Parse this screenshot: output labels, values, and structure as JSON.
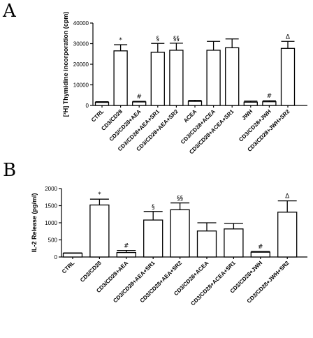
{
  "chart_data": [
    {
      "type": "bar",
      "panel": "A",
      "ylabel": "[³H] Thymidine incorporation (cpm)",
      "ylim": [
        0,
        40000
      ],
      "yticks": [
        0,
        10000,
        20000,
        30000,
        40000
      ],
      "categories": [
        "CTRL",
        "CD3/CD28",
        "CD3/CD28+AEA",
        "CD3/CD28+AEA+SR1",
        "CD3/CD28+AEA+SR2",
        "ACEA",
        "CD3/CD28+ACEA",
        "CD3/CD28+ACEA+SR1",
        "JWH",
        "CD3/CD28+JWH",
        "CD3/CD28+JWH+SR2"
      ],
      "values": [
        1500,
        26500,
        1700,
        25800,
        26800,
        2000,
        26800,
        28000,
        1600,
        1800,
        27700
      ],
      "errors": [
        300,
        3000,
        300,
        4300,
        3400,
        500,
        4300,
        4300,
        500,
        500,
        3400
      ],
      "annotations": [
        "",
        "*",
        "#",
        "§",
        "§§",
        "",
        "",
        "",
        "",
        "#",
        "Δ"
      ]
    },
    {
      "type": "bar",
      "panel": "B",
      "ylabel": "IL-2 Release (pg/ml)",
      "ylim": [
        0,
        2000
      ],
      "yticks": [
        0,
        500,
        1000,
        1500,
        2000
      ],
      "categories": [
        "CTRL",
        "CD3/CD28",
        "CD3/CD28+AEA",
        "CD3/CD28+AEA+SR1",
        "CD3/CD28+AEA+SR2",
        "CD3/CD28+ACEA",
        "CD3/CD28+ACEA+SR1",
        "CD3/CD28+JWH",
        "CD3/CD28+JWH+SR2"
      ],
      "values": [
        110,
        1520,
        130,
        1080,
        1380,
        760,
        820,
        140,
        1310
      ],
      "errors": [
        10,
        170,
        60,
        250,
        200,
        240,
        160,
        20,
        330
      ],
      "annotations": [
        "",
        "*",
        "#",
        "§",
        "§§",
        "",
        "",
        "#",
        "Δ"
      ]
    }
  ]
}
